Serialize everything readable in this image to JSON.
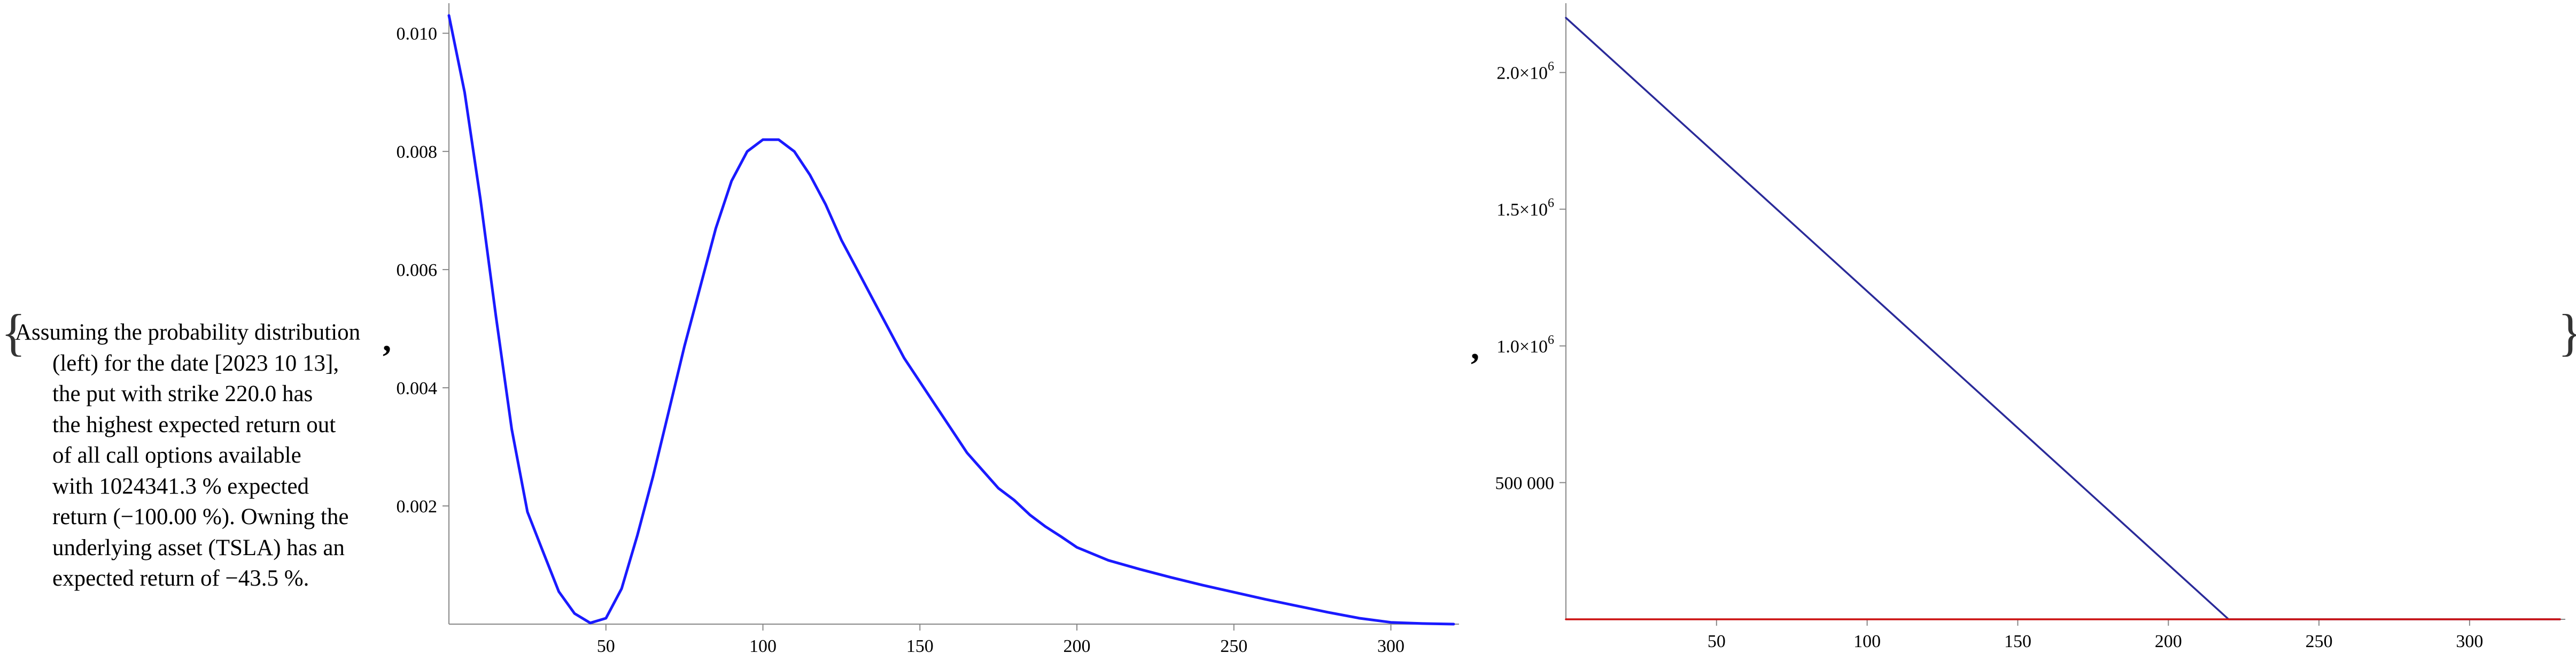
{
  "punctuation": {
    "open_brace": "{",
    "close_brace": "}",
    "comma": ","
  },
  "description": {
    "lines": [
      "Assuming the probability distribution",
      "(left) for the date [2023 10 13],",
      "the put with strike 220.0 has",
      "the highest expected return out",
      "of all call options available",
      "with 1024341.3 % expected",
      "return (−100.00 %). Owning the",
      "underlying asset (TSLA) has an",
      "expected return of −43.5 %."
    ]
  },
  "chart_data": [
    {
      "type": "line",
      "title": "",
      "xlabel": "",
      "ylabel": "",
      "xlim": [
        0,
        320
      ],
      "ylim": [
        0,
        0.0104
      ],
      "x_ticks": [
        50,
        100,
        150,
        200,
        250,
        300
      ],
      "y_ticks": [
        0.002,
        0.004,
        0.006,
        0.008,
        0.01
      ],
      "x_tick_labels": [
        "50",
        "100",
        "150",
        "200",
        "250",
        "300"
      ],
      "y_tick_labels": [
        "0.002",
        "0.004",
        "0.006",
        "0.008",
        "0.010"
      ],
      "grid": false,
      "series": [
        {
          "color": "#1a1aff",
          "x": [
            0,
            5,
            10,
            15,
            20,
            25,
            30,
            35,
            40,
            45,
            50,
            55,
            60,
            65,
            70,
            75,
            80,
            85,
            90,
            95,
            100,
            105,
            110,
            115,
            120,
            125,
            130,
            135,
            140,
            145,
            150,
            155,
            160,
            165,
            170,
            175,
            180,
            185,
            190,
            195,
            200,
            210,
            220,
            230,
            240,
            250,
            260,
            270,
            280,
            290,
            300,
            310,
            320
          ],
          "y": [
            0.0103,
            0.009,
            0.0072,
            0.0052,
            0.0033,
            0.0019,
            0.00122,
            0.00055,
            0.00018,
            2e-05,
            0.0001,
            0.0006,
            0.0015,
            0.0025,
            0.0036,
            0.0047,
            0.0057,
            0.0067,
            0.0075,
            0.008,
            0.0082,
            0.0082,
            0.008,
            0.0076,
            0.0071,
            0.0065,
            0.006,
            0.0055,
            0.005,
            0.0045,
            0.0041,
            0.0037,
            0.0033,
            0.0029,
            0.0026,
            0.0023,
            0.0021,
            0.00185,
            0.00165,
            0.00148,
            0.0013,
            0.00108,
            0.00093,
            0.00079,
            0.00066,
            0.00054,
            0.00042,
            0.00031,
            0.0002,
            0.0001,
            3e-05,
            1e-05,
            0.0
          ]
        }
      ]
    },
    {
      "type": "line",
      "title": "",
      "xlabel": "",
      "ylabel": "",
      "xlim": [
        0,
        330
      ],
      "ylim": [
        0,
        2230000
      ],
      "x_ticks": [
        50,
        100,
        150,
        200,
        250,
        300
      ],
      "y_ticks": [
        500000,
        1000000,
        1500000,
        2000000
      ],
      "x_tick_labels": [
        "50",
        "100",
        "150",
        "200",
        "250",
        "300"
      ],
      "y_tick_labels": [
        "500 000",
        "1.0×10",
        "1.5×10",
        "2.0×10"
      ],
      "y_tick_exponent": "6",
      "grid": false,
      "series": [
        {
          "color": "#2a2a99",
          "x": [
            0,
            220,
            330
          ],
          "y": [
            2200000,
            0,
            0
          ]
        },
        {
          "color": "#cc1111",
          "x": [
            0,
            330
          ],
          "y": [
            0,
            0
          ]
        }
      ]
    }
  ]
}
